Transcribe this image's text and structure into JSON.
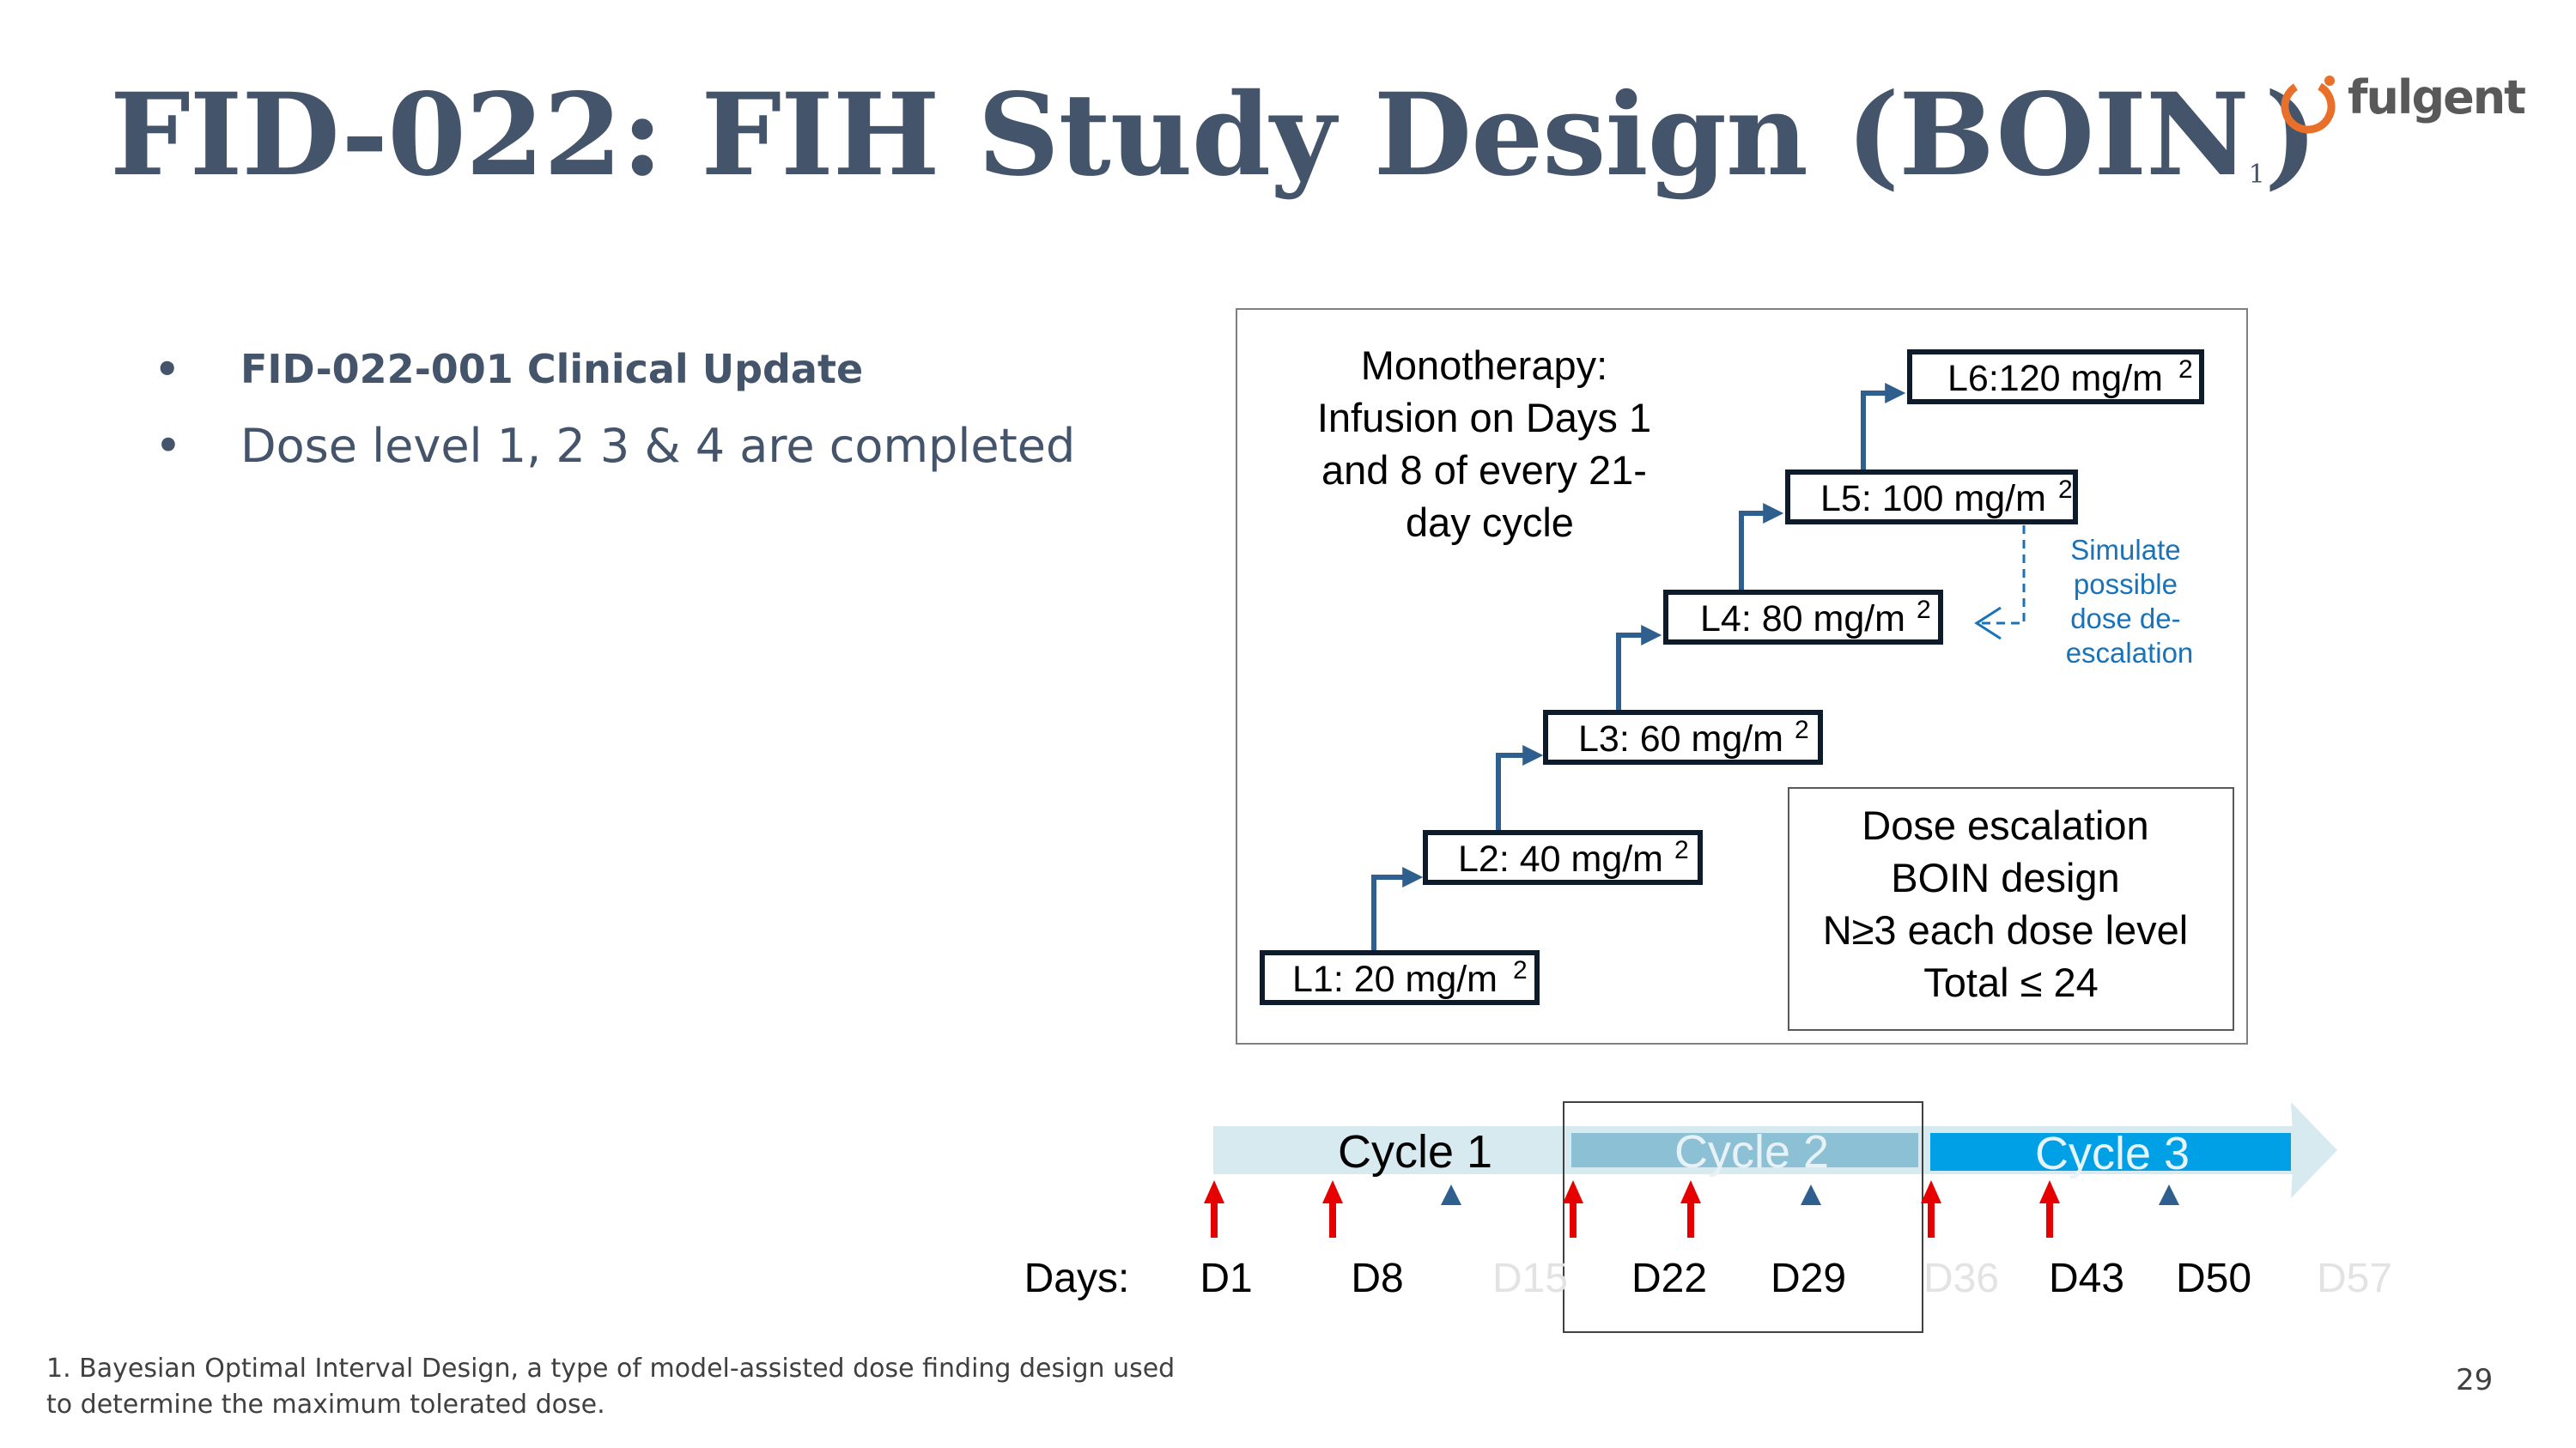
{
  "slide": {
    "title": "FID-022: FIH Study Design (BOIN",
    "title_sup": "1",
    "title_close": ")",
    "logo_text": "fulgent",
    "bullets": [
      "FID-022-001 Clinical Update",
      "Dose level 1, 2 3 & 4  are completed"
    ],
    "footnote": "1. Bayesian Optimal Interval Design, a type of model-assisted dose finding design used to determine the maximum tolerated dose.",
    "page_number": "29"
  },
  "diagram": {
    "monotherapy": [
      "Monotherapy:",
      "Infusion on Days 1",
      "and 8 of every 21-",
      "day cycle"
    ],
    "dose_levels": [
      {
        "name": "L1: 20 mg/m",
        "sup": "2"
      },
      {
        "name": "L2: 40 mg/m",
        "sup": "2"
      },
      {
        "name": "L3: 60 mg/m",
        "sup": "2"
      },
      {
        "name": "L4: 80 mg/m",
        "sup": "2"
      },
      {
        "name": "L5: 100 mg/m",
        "sup": "2"
      },
      {
        "name": "L6:120 mg/m",
        "sup": "2"
      }
    ],
    "deescalation": [
      "Simulate",
      "possible",
      "dose de-",
      "escalation"
    ],
    "design_box": [
      "Dose escalation",
      "BOIN design",
      "N≥3 each dose level",
      "Total ≤ 24"
    ],
    "cycles": [
      "Cycle 1",
      "Cycle 2",
      "Cycle 3"
    ],
    "days_label": "Days:",
    "days": [
      "D1",
      "D8",
      "D15",
      "D22",
      "D29",
      "D36",
      "D43",
      "D50",
      "D57"
    ]
  },
  "colors": {
    "title": "#44546a",
    "step_arrow": "#2e5f8e",
    "level_border": "#0d1b2a",
    "deescalation": "#1a73b8",
    "infusion_arrow": "#e60000",
    "cycle1": "#d6eaf0",
    "cycle2": "#8cc0d4",
    "cycle3": "#00a0e6",
    "logo_ring": "#e8702a"
  }
}
